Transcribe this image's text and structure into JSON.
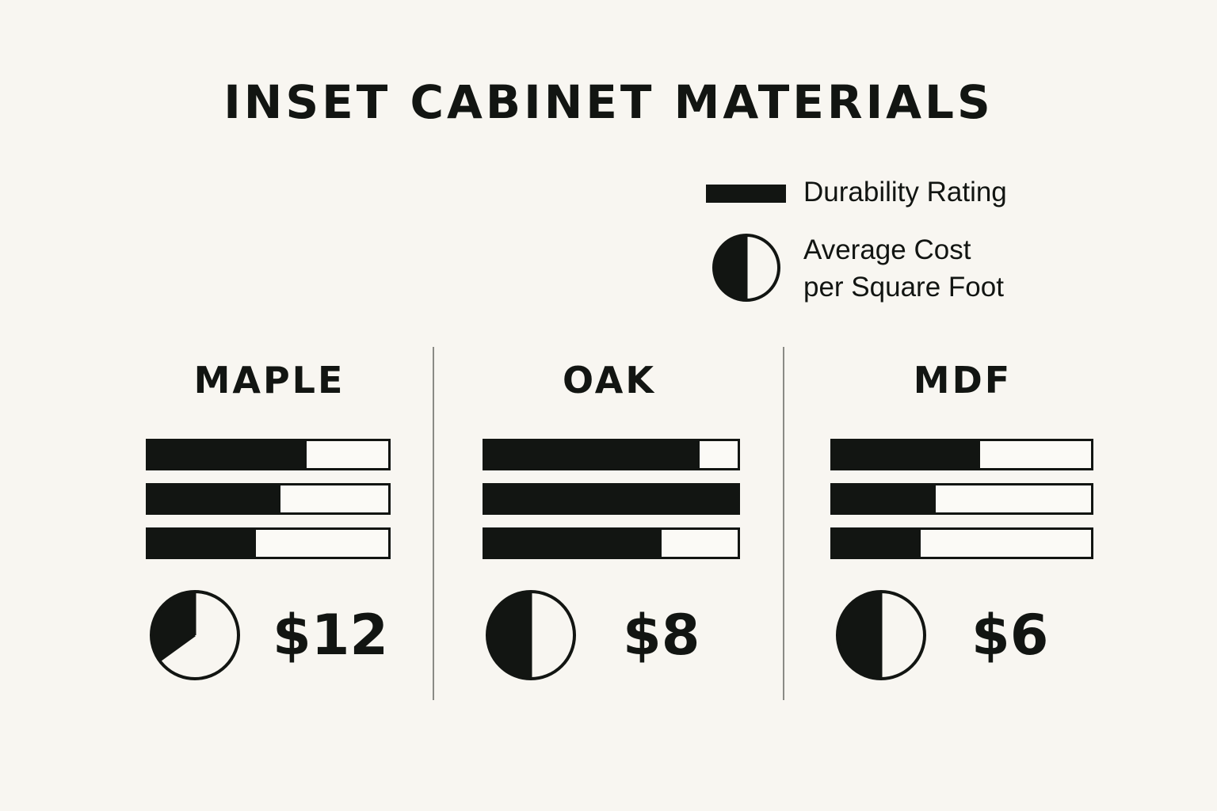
{
  "chart_data": {
    "type": "bar",
    "title": "INSET CABINET MATERIALS",
    "legend": {
      "durability_label": "Durability Rating",
      "cost_label_line1": "Average Cost",
      "cost_label_line2": "per Square Foot",
      "placement": "top-right"
    },
    "categories": [
      "MAPLE",
      "OAK",
      "MDF"
    ],
    "materials": [
      {
        "name": "MAPLE",
        "durability_fractions": [
          0.66,
          0.55,
          0.45
        ],
        "cost_pie_fraction": 0.35,
        "price": "$12"
      },
      {
        "name": "OAK",
        "durability_fractions": [
          0.85,
          1.0,
          0.7
        ],
        "cost_pie_fraction": 0.5,
        "price": "$8"
      },
      {
        "name": "MDF",
        "durability_fractions": [
          0.57,
          0.4,
          0.34
        ],
        "cost_pie_fraction": 0.5,
        "price": "$6"
      }
    ],
    "colors": {
      "ink": "#121512",
      "background": "#f8f6f1",
      "divider": "#8b8b86"
    },
    "grid": false
  }
}
